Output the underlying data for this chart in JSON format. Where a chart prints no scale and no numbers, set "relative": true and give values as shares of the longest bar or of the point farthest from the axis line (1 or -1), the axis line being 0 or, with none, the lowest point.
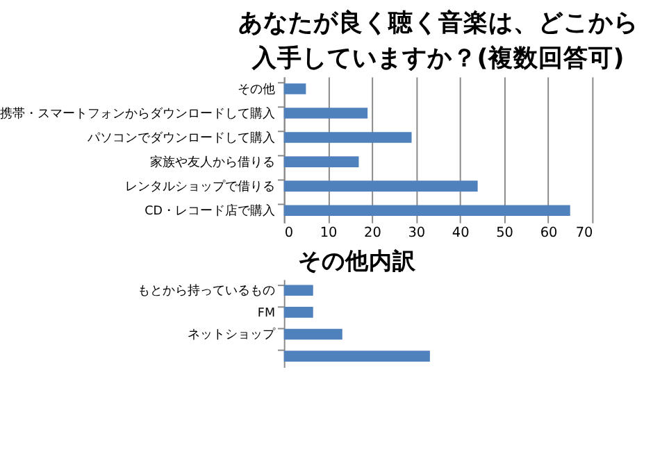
{
  "chart_data": [
    {
      "type": "bar",
      "orientation": "horizontal",
      "title": "あなたが良く聴く音楽は、どこから入手していますか？(複数回答可)",
      "categories": [
        "その他",
        "携帯・スマートフォンからダウンロードして購入",
        "パソコンでダウンロードして購入",
        "家族や友人から借りる",
        "レンタルショップで借りる",
        "CD・レコード店で購入"
      ],
      "values": [
        5,
        19,
        29,
        17,
        44,
        65
      ],
      "color": "#4f81bd",
      "xlim": [
        0,
        70
      ],
      "xticks": [
        0,
        10,
        20,
        30,
        40,
        50,
        60,
        70
      ],
      "grid": "x"
    },
    {
      "type": "bar",
      "orientation": "horizontal",
      "title": "その他内訳",
      "categories": [
        "もとから持っているもの",
        "FM",
        "ネットショップ",
        null
      ],
      "values": [
        0.2,
        0.2,
        0.4,
        1
      ],
      "color": "#4f81bd",
      "relative": true
    }
  ]
}
